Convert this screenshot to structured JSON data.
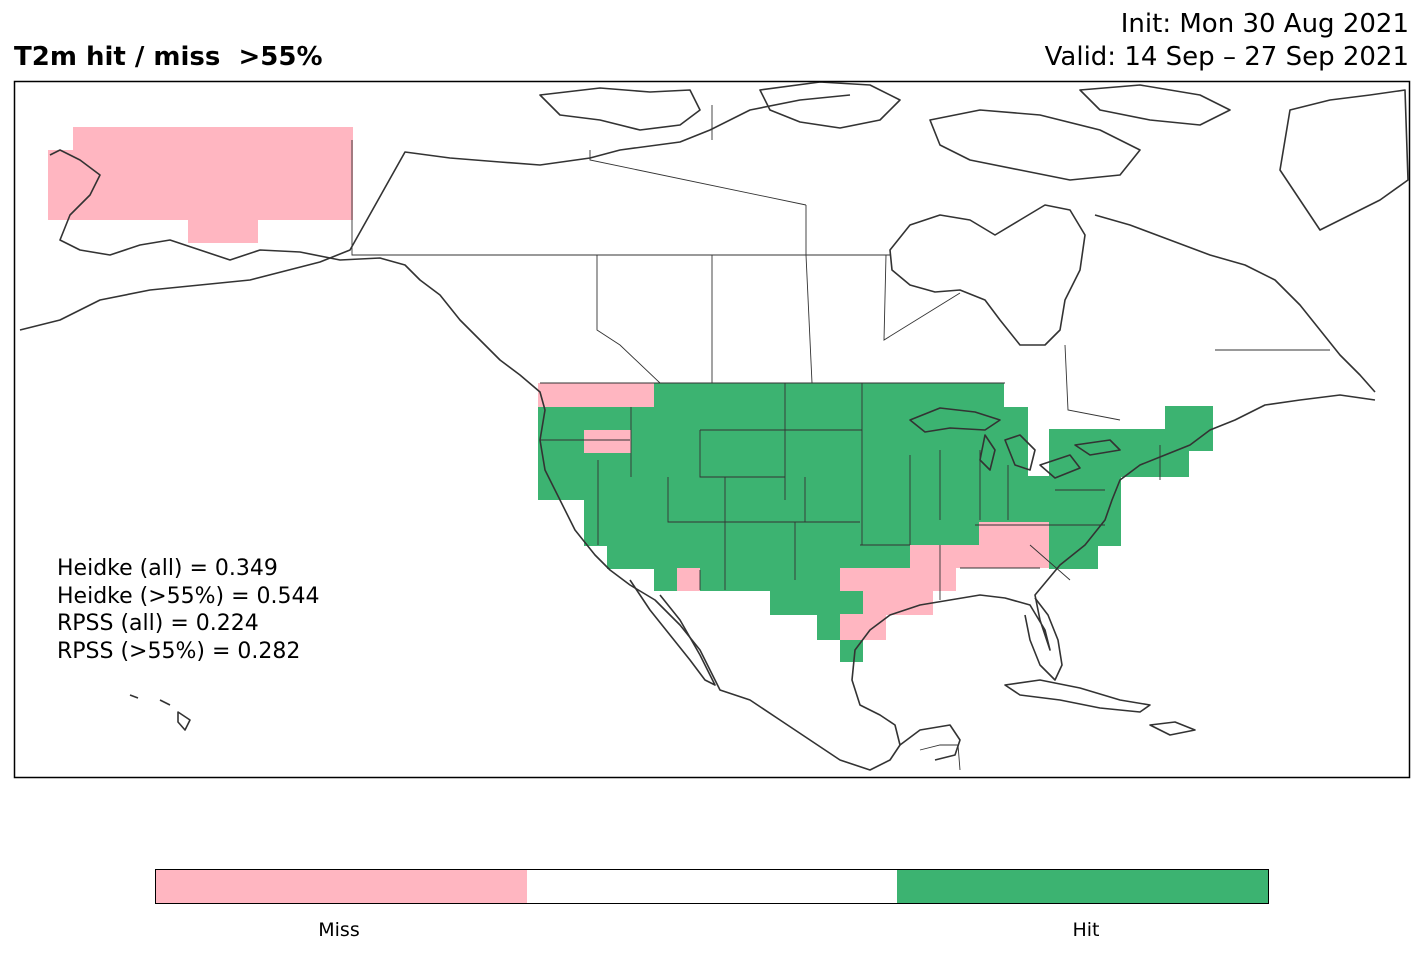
{
  "title": "T2m hit / miss  >55%",
  "init_line": "Init: Mon 30 Aug 2021",
  "valid_line": "Valid: 14 Sep – 27 Sep 2021",
  "stats": [
    "Heidke (all) = 0.349",
    "Heidke (>55%) = 0.544",
    "RPSS (all) = 0.224",
    "RPSS (>55%) = 0.282"
  ],
  "colorbar": {
    "labels": [
      "Miss",
      "Hit"
    ],
    "colors": {
      "miss": "#ffb6c1",
      "neutral": "#ffffff",
      "hit": "#3cb371"
    }
  },
  "map": {
    "region": "North America",
    "coastline_color": "#333333",
    "categories": [
      "miss",
      "hit"
    ]
  }
}
